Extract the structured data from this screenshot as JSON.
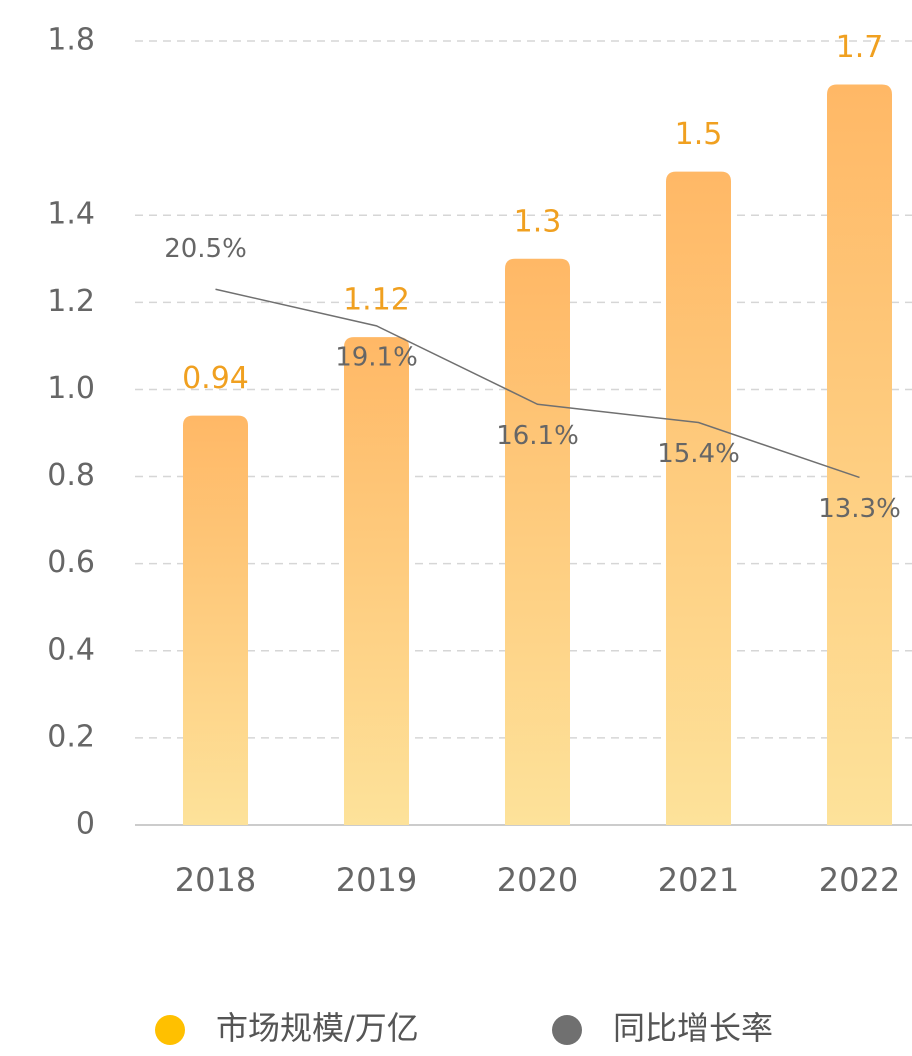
{
  "chart_data": {
    "type": "bar",
    "categories": [
      "2018",
      "2019",
      "2020",
      "2021",
      "2022"
    ],
    "series": [
      {
        "name": "市场规模/万亿",
        "color": "#ffc000",
        "type": "bar",
        "values": [
          0.94,
          1.12,
          1.3,
          1.5,
          1.7
        ]
      },
      {
        "name": "同比增长率",
        "color": "#707070",
        "type": "line",
        "axis": "y2",
        "values": [
          20.5,
          19.1,
          16.1,
          15.4,
          13.3
        ],
        "value_labels": [
          "20.5%",
          "19.1%",
          "16.1%",
          "15.4%",
          "13.3%"
        ]
      }
    ],
    "ylim": [
      0,
      1.8
    ],
    "yticks": [
      0,
      0.2,
      0.4,
      0.6,
      0.8,
      {
        "value": 1,
        "label": "1.0"
      },
      1.2,
      1.4,
      1.8
    ],
    "y2lim": [
      0,
      30
    ],
    "grid": true,
    "legend": "bottom"
  }
}
